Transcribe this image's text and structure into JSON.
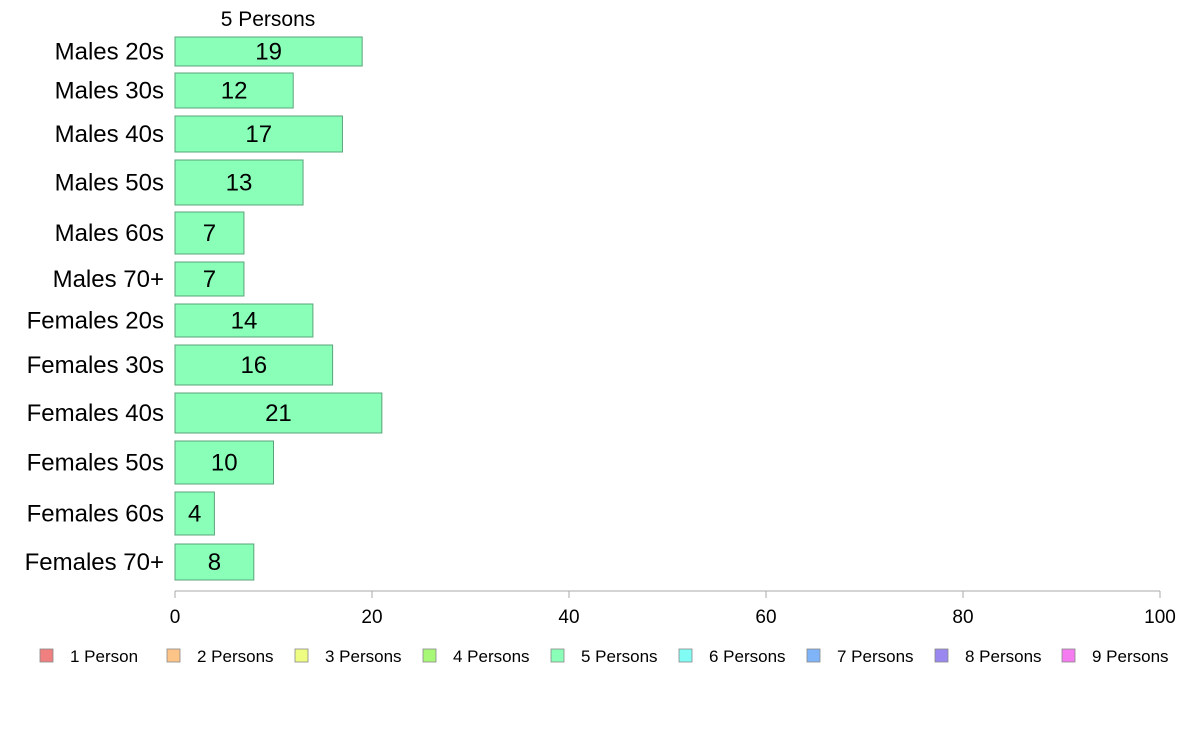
{
  "chart_data": {
    "type": "bar",
    "orientation": "horizontal",
    "series_title": "5 Persons",
    "categories": [
      "Males 20s",
      "Males 30s",
      "Males 40s",
      "Males 50s",
      "Males 60s",
      "Males 70+",
      "Females 20s",
      "Females 30s",
      "Females 40s",
      "Females 50s",
      "Females 60s",
      "Females 70+"
    ],
    "series": [
      {
        "name": "5 Persons",
        "values": [
          19,
          12,
          17,
          13,
          7,
          7,
          14,
          16,
          21,
          10,
          4,
          8
        ],
        "color": "#8affb8"
      }
    ],
    "xlim": [
      0,
      100
    ],
    "xticks": [
      "0",
      "20",
      "40",
      "60",
      "80",
      "100"
    ],
    "grid": false,
    "legend_position": "bottom",
    "legend": [
      {
        "label": "1 Person",
        "color": "#f08080"
      },
      {
        "label": "2 Persons",
        "color": "#fcc487"
      },
      {
        "label": "3 Persons",
        "color": "#eefc82"
      },
      {
        "label": "4 Persons",
        "color": "#a8f878"
      },
      {
        "label": "5 Persons",
        "color": "#8affb8"
      },
      {
        "label": "6 Persons",
        "color": "#80fcf4"
      },
      {
        "label": "7 Persons",
        "color": "#80b4f8"
      },
      {
        "label": "8 Persons",
        "color": "#9a88f0"
      },
      {
        "label": "9 Persons",
        "color": "#f47cf0"
      }
    ]
  }
}
